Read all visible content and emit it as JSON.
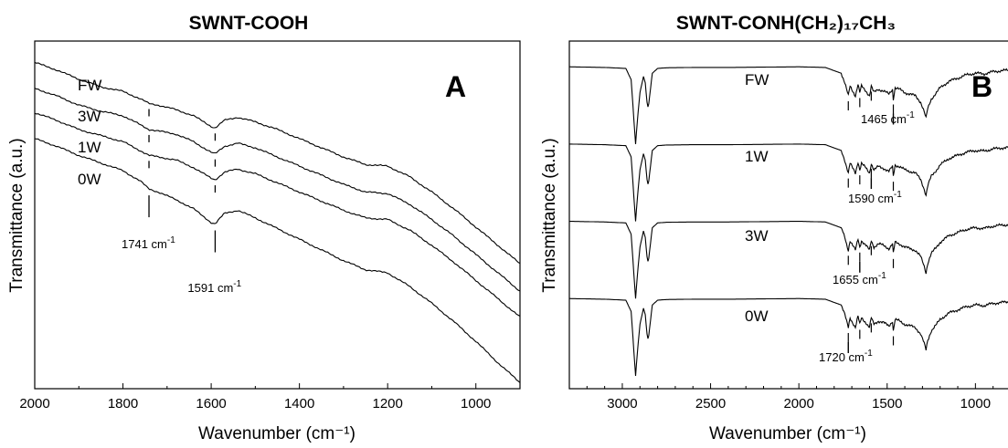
{
  "chart_data": [
    {
      "type": "line",
      "title": "SWNT-COOH",
      "panel_label": "A",
      "xlabel": "Wavenumber (cm⁻¹)",
      "ylabel": "Transmittance (a.u.)",
      "xlim": [
        2000,
        900
      ],
      "x_ticks": [
        2000,
        1800,
        1600,
        1400,
        1200,
        1000
      ],
      "y_ticks_shown": false,
      "series": [
        {
          "name": "FW",
          "x": [
            2000,
            1950,
            1900,
            1850,
            1800,
            1760,
            1741,
            1720,
            1680,
            1640,
            1600,
            1591,
            1570,
            1540,
            1500,
            1450,
            1400,
            1350,
            1300,
            1250,
            1200,
            1150,
            1100,
            1050,
            1000,
            950,
            900
          ],
          "y": [
            9.1,
            8.85,
            8.55,
            8.3,
            8.15,
            7.9,
            7.75,
            7.7,
            7.55,
            7.35,
            7.0,
            6.95,
            7.2,
            7.3,
            7.15,
            6.9,
            6.6,
            6.3,
            6.0,
            5.75,
            5.7,
            5.35,
            4.85,
            4.3,
            3.7,
            3.1,
            2.5
          ]
        },
        {
          "name": "3W",
          "x": [
            2000,
            1950,
            1900,
            1850,
            1800,
            1760,
            1741,
            1720,
            1680,
            1640,
            1600,
            1591,
            1570,
            1540,
            1500,
            1450,
            1400,
            1350,
            1300,
            1250,
            1200,
            1150,
            1100,
            1050,
            1000,
            950,
            900
          ],
          "y": [
            8.25,
            8.0,
            7.7,
            7.5,
            7.35,
            7.05,
            6.9,
            6.85,
            6.75,
            6.5,
            6.15,
            6.1,
            6.35,
            6.45,
            6.3,
            6.0,
            5.7,
            5.4,
            5.1,
            4.85,
            4.8,
            4.45,
            3.95,
            3.4,
            2.8,
            2.2,
            1.6
          ]
        },
        {
          "name": "1W",
          "x": [
            2000,
            1950,
            1900,
            1850,
            1800,
            1760,
            1741,
            1720,
            1680,
            1640,
            1600,
            1591,
            1570,
            1540,
            1500,
            1450,
            1400,
            1350,
            1300,
            1250,
            1200,
            1150,
            1100,
            1050,
            1000,
            950,
            900
          ],
          "y": [
            7.45,
            7.2,
            6.9,
            6.7,
            6.5,
            6.2,
            6.05,
            6.0,
            5.9,
            5.65,
            5.3,
            5.25,
            5.5,
            5.6,
            5.45,
            5.15,
            4.85,
            4.55,
            4.25,
            4.0,
            3.95,
            3.6,
            3.1,
            2.55,
            1.95,
            1.35,
            0.75
          ]
        },
        {
          "name": "0W",
          "x": [
            2000,
            1950,
            1900,
            1850,
            1800,
            1760,
            1741,
            1720,
            1680,
            1640,
            1600,
            1591,
            1570,
            1540,
            1500,
            1450,
            1400,
            1350,
            1300,
            1250,
            1200,
            1150,
            1100,
            1050,
            1000,
            950,
            900
          ],
          "y": [
            6.6,
            6.35,
            6.05,
            5.8,
            5.55,
            5.2,
            4.95,
            4.85,
            4.6,
            4.3,
            3.85,
            3.8,
            4.15,
            4.25,
            4.0,
            3.65,
            3.3,
            2.95,
            2.6,
            2.3,
            2.2,
            1.75,
            1.2,
            0.6,
            -0.05,
            -0.75,
            -1.4
          ]
        }
      ],
      "annotations": [
        {
          "label": "1741 cm",
          "superscript": "-1",
          "x": 1741
        },
        {
          "label": "1591 cm",
          "superscript": "-1",
          "x": 1591
        }
      ]
    },
    {
      "type": "line",
      "title": "SWNT-CONH(CH₂)₁₇CH₃",
      "panel_label": "B",
      "xlabel": "Wavenumber (cm⁻¹)",
      "ylabel": "Transmittance (a.u.)",
      "xlim": [
        3300,
        800
      ],
      "x_ticks": [
        3000,
        2500,
        2000,
        1500,
        1000
      ],
      "y_ticks_shown": false,
      "series_offsets": {
        "FW": 9.0,
        "1W": 6.6,
        "3W": 4.2,
        "0W": 1.8
      },
      "series": [
        {
          "name": "FW"
        },
        {
          "name": "1W"
        },
        {
          "name": "3W"
        },
        {
          "name": "0W"
        }
      ],
      "base_profile": {
        "x": [
          3300,
          3100,
          2980,
          2950,
          2935,
          2925,
          2915,
          2900,
          2880,
          2870,
          2860,
          2853,
          2845,
          2830,
          2800,
          2750,
          2600,
          2400,
          2200,
          2000,
          1850,
          1760,
          1740,
          1720,
          1710,
          1700,
          1680,
          1665,
          1655,
          1645,
          1620,
          1600,
          1590,
          1575,
          1550,
          1520,
          1490,
          1470,
          1465,
          1455,
          1430,
          1400,
          1370,
          1340,
          1310,
          1290,
          1280,
          1270,
          1250,
          1220,
          1200,
          1150,
          1100,
          1050,
          1000,
          950,
          900,
          850,
          800
        ],
        "y": [
          0,
          -0.02,
          -0.05,
          -0.4,
          -1.6,
          -2.4,
          -1.7,
          -0.8,
          -0.3,
          -0.5,
          -1.1,
          -1.3,
          -0.9,
          -0.2,
          -0.05,
          -0.03,
          -0.02,
          -0.02,
          -0.01,
          0,
          -0.02,
          -0.2,
          -0.5,
          -0.9,
          -0.6,
          -0.7,
          -0.9,
          -0.55,
          -0.8,
          -0.6,
          -0.75,
          -0.9,
          -0.6,
          -0.8,
          -0.7,
          -0.75,
          -0.85,
          -0.7,
          -1.0,
          -0.65,
          -0.7,
          -0.8,
          -0.85,
          -0.9,
          -1.1,
          -1.4,
          -1.6,
          -1.3,
          -1.0,
          -0.8,
          -0.65,
          -0.45,
          -0.35,
          -0.25,
          -0.2,
          -0.22,
          -0.15,
          -0.12,
          -0.1
        ]
      },
      "annotations": [
        {
          "label": "1465 cm",
          "superscript": "-1",
          "x": 1465,
          "series": "FW"
        },
        {
          "label": "1590 cm",
          "superscript": "-1",
          "x": 1590,
          "series": "1W"
        },
        {
          "label": "1655 cm",
          "superscript": "-1",
          "x": 1655,
          "series": "3W"
        },
        {
          "label": "1720 cm",
          "superscript": "-1",
          "x": 1720,
          "series": "0W"
        }
      ]
    }
  ]
}
